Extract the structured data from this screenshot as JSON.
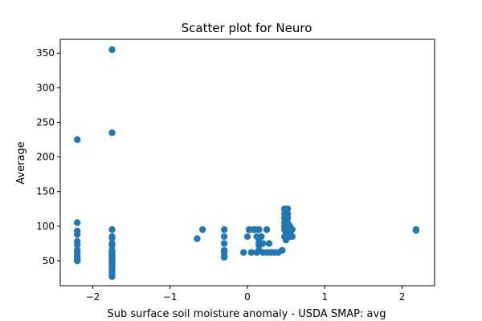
{
  "chart_data": {
    "type": "scatter",
    "title": "Scatter plot for Neuro",
    "xlabel": "Sub surface soil moisture anomaly - USDA SMAP: avg",
    "ylabel": "Average",
    "xlim": [
      -2.42,
      2.42
    ],
    "ylim": [
      14,
      370
    ],
    "xticks": [
      -2,
      -1,
      0,
      1,
      2
    ],
    "xtick_labels": [
      "−2",
      "−1",
      "0",
      "1",
      "2"
    ],
    "yticks": [
      50,
      100,
      150,
      200,
      250,
      300,
      350
    ],
    "ytick_labels": [
      "50",
      "100",
      "150",
      "200",
      "250",
      "300",
      "350"
    ],
    "grid": false,
    "color": "#1f77b4",
    "series": [
      {
        "x": [
          -2.2,
          -2.2,
          -2.2,
          -2.2,
          -2.2,
          -2.2,
          -2.2,
          -2.2,
          -2.2,
          -2.2,
          -2.2,
          -2.2,
          -1.75,
          -1.75,
          -1.75,
          -1.75,
          -1.75,
          -1.75,
          -1.75,
          -1.75,
          -1.75,
          -1.75,
          -1.75,
          -1.75,
          -1.75,
          -1.75,
          -1.75,
          -1.75,
          -1.75,
          -1.75,
          -1.75,
          -1.75,
          -1.75,
          -1.75,
          -0.65,
          -0.58,
          -0.3,
          -0.3,
          -0.3,
          -0.3,
          -0.3,
          -0.3,
          -0.3,
          -0.05,
          0.0,
          0.02,
          0.05,
          0.08,
          0.1,
          0.12,
          0.12,
          0.15,
          0.15,
          0.15,
          0.15,
          0.15,
          0.18,
          0.18,
          0.2,
          0.2,
          0.25,
          0.25,
          0.28,
          0.3,
          0.35,
          0.4,
          0.45,
          0.48,
          0.48,
          0.48,
          0.48,
          0.48,
          0.48,
          0.48,
          0.5,
          0.5,
          0.52,
          0.52,
          0.52,
          0.52,
          0.52,
          0.52,
          0.55,
          0.55,
          0.55,
          0.58,
          0.58,
          2.18,
          2.18
        ],
        "y": [
          225,
          105,
          93,
          88,
          78,
          73,
          65,
          62,
          57,
          55,
          52,
          50,
          355,
          235,
          95,
          85,
          83,
          75,
          72,
          65,
          62,
          60,
          57,
          55,
          53,
          50,
          48,
          46,
          44,
          42,
          38,
          35,
          30,
          27,
          82,
          95,
          95,
          85,
          75,
          65,
          62,
          57,
          55,
          62,
          85,
          95,
          62,
          95,
          95,
          62,
          85,
          77,
          95,
          75,
          72,
          65,
          85,
          75,
          62,
          75,
          95,
          62,
          75,
          62,
          62,
          62,
          65,
          125,
          118,
          112,
          105,
          100,
          95,
          85,
          90,
          80,
          125,
          118,
          112,
          105,
          95,
          85,
          100,
          90,
          85,
          95,
          85,
          95,
          94
        ]
      }
    ]
  }
}
